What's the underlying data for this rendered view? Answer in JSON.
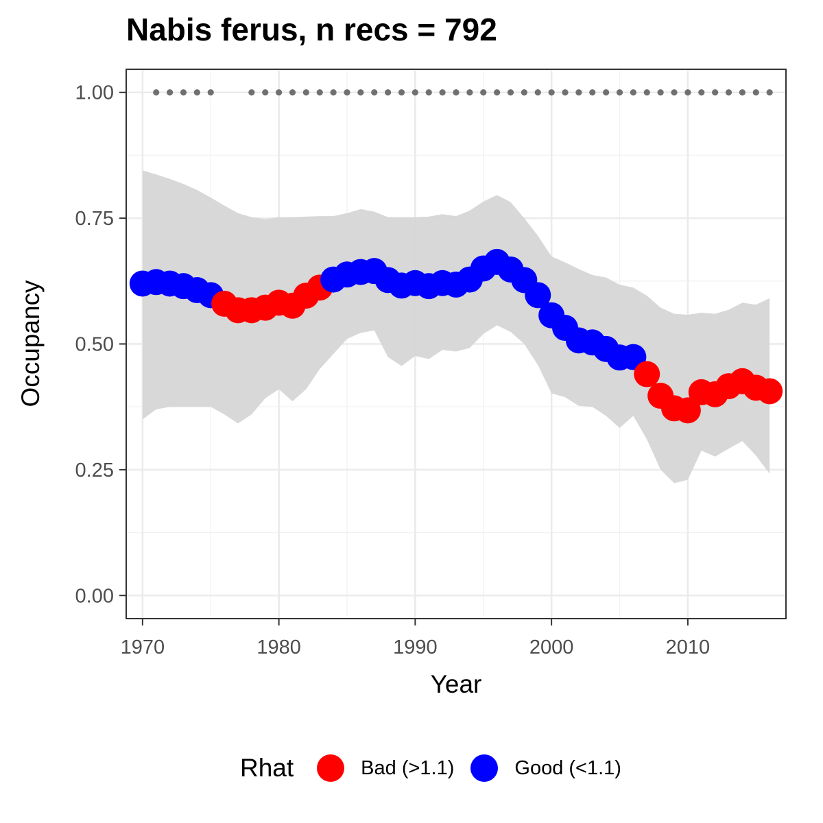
{
  "chart_data": {
    "type": "line",
    "title": "Nabis ferus, n recs = 792",
    "xlabel": "Year",
    "ylabel": "Occupancy",
    "xlim": [
      1968.8,
      2017.2
    ],
    "ylim": [
      -0.046,
      1.046
    ],
    "x_ticks": [
      1970,
      1980,
      1990,
      2000,
      2010
    ],
    "x_tick_labels": [
      "1970",
      "1980",
      "1990",
      "2000",
      "2010"
    ],
    "y_ticks": [
      0,
      0.25,
      0.5,
      0.75,
      1.0
    ],
    "y_tick_labels": [
      "0.00",
      "0.25",
      "0.50",
      "0.75",
      "1.00"
    ],
    "grid": true,
    "legend": {
      "title": "Rhat",
      "placement": "bottom",
      "entries": [
        {
          "label": "Bad (>1.1)",
          "color": "#ff0000"
        },
        {
          "label": "Good (<1.1)",
          "color": "#0000ff"
        }
      ]
    },
    "colors": {
      "bad": "#ff0000",
      "good": "#0000ff",
      "ribbon": "#d6d6d6",
      "recording_dots": "#707070"
    },
    "years": [
      1970,
      1971,
      1972,
      1973,
      1974,
      1975,
      1976,
      1977,
      1978,
      1979,
      1980,
      1981,
      1982,
      1983,
      1984,
      1985,
      1986,
      1987,
      1988,
      1989,
      1990,
      1991,
      1992,
      1993,
      1994,
      1995,
      1996,
      1997,
      1998,
      1999,
      2000,
      2001,
      2002,
      2003,
      2004,
      2005,
      2006,
      2007,
      2008,
      2009,
      2010,
      2011,
      2012,
      2013,
      2014,
      2015,
      2016
    ],
    "occupancy": [
      0.62,
      0.623,
      0.62,
      0.615,
      0.607,
      0.597,
      0.58,
      0.567,
      0.567,
      0.572,
      0.582,
      0.576,
      0.596,
      0.612,
      0.628,
      0.638,
      0.643,
      0.645,
      0.627,
      0.616,
      0.621,
      0.615,
      0.621,
      0.618,
      0.628,
      0.65,
      0.663,
      0.648,
      0.627,
      0.597,
      0.557,
      0.532,
      0.507,
      0.503,
      0.49,
      0.473,
      0.474,
      0.44,
      0.397,
      0.372,
      0.368,
      0.404,
      0.4,
      0.416,
      0.426,
      0.413,
      0.406
    ],
    "rhat": [
      "Good",
      "Good",
      "Good",
      "Good",
      "Good",
      "Good",
      "Bad",
      "Bad",
      "Bad",
      "Bad",
      "Bad",
      "Bad",
      "Bad",
      "Bad",
      "Good",
      "Good",
      "Good",
      "Good",
      "Good",
      "Good",
      "Good",
      "Good",
      "Good",
      "Good",
      "Good",
      "Good",
      "Good",
      "Good",
      "Good",
      "Good",
      "Good",
      "Good",
      "Good",
      "Good",
      "Good",
      "Good",
      "Good",
      "Bad",
      "Bad",
      "Bad",
      "Bad",
      "Bad",
      "Bad",
      "Bad",
      "Bad",
      "Bad",
      "Bad"
    ],
    "upper": [
      0.845,
      0.837,
      0.828,
      0.818,
      0.806,
      0.791,
      0.775,
      0.76,
      0.752,
      0.748,
      0.752,
      0.752,
      0.753,
      0.754,
      0.754,
      0.76,
      0.768,
      0.763,
      0.752,
      0.752,
      0.752,
      0.753,
      0.758,
      0.754,
      0.765,
      0.783,
      0.796,
      0.782,
      0.75,
      0.715,
      0.674,
      0.662,
      0.649,
      0.637,
      0.632,
      0.618,
      0.612,
      0.596,
      0.572,
      0.56,
      0.558,
      0.562,
      0.56,
      0.568,
      0.582,
      0.578,
      0.591
    ],
    "lower": [
      0.35,
      0.37,
      0.375,
      0.375,
      0.375,
      0.375,
      0.36,
      0.342,
      0.36,
      0.392,
      0.41,
      0.386,
      0.41,
      0.45,
      0.48,
      0.51,
      0.522,
      0.527,
      0.474,
      0.456,
      0.476,
      0.47,
      0.488,
      0.485,
      0.492,
      0.52,
      0.537,
      0.524,
      0.5,
      0.458,
      0.402,
      0.394,
      0.377,
      0.375,
      0.357,
      0.333,
      0.357,
      0.31,
      0.25,
      0.223,
      0.23,
      0.288,
      0.276,
      0.292,
      0.307,
      0.278,
      0.242
    ],
    "recording_years": [
      1971,
      1972,
      1973,
      1974,
      1975,
      1978,
      1979,
      1980,
      1981,
      1982,
      1983,
      1984,
      1985,
      1986,
      1987,
      1988,
      1989,
      1990,
      1991,
      1992,
      1993,
      1994,
      1995,
      1996,
      1997,
      1998,
      1999,
      2000,
      2001,
      2002,
      2003,
      2004,
      2005,
      2006,
      2007,
      2008,
      2009,
      2010,
      2011,
      2012,
      2013,
      2014,
      2015,
      2016
    ],
    "recording_value": 1.0
  }
}
